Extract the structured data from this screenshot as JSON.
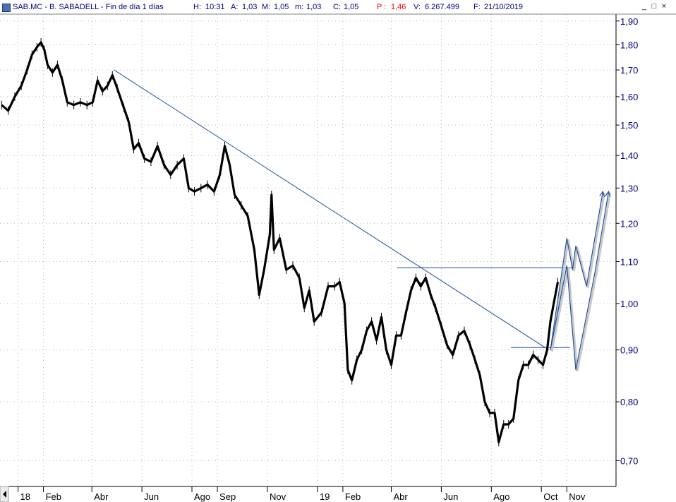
{
  "info_bar": {
    "ticker": "SAB.MC - B. SABADELL - Fin de día 1 días",
    "h_label": "H:",
    "h_value": "10:31",
    "a_label": "A:",
    "a_value": "1,03",
    "m_label": "M:",
    "m_value": "1,05",
    "min_label": "m:",
    "min_value": "1,03",
    "c_label": "C:",
    "c_value": "1,05",
    "p_label": "P :",
    "p_value": "1,46",
    "v_label": "V:",
    "v_value": "6.267.499",
    "f_label": "F:",
    "f_value": "21/10/2019"
  },
  "window_controls": {
    "minimize": "_",
    "maximize": "□",
    "close": "×"
  },
  "colors": {
    "price": "#000000",
    "trendlines": "#1f4e9e",
    "axis_text": "#000080",
    "grid": "#b5b5b5"
  },
  "chart_data": {
    "type": "line",
    "y_scale": "log",
    "ylim": [
      0.66,
      1.93
    ],
    "y_ticks": [
      {
        "value": 1.9,
        "label": "1,90"
      },
      {
        "value": 1.8,
        "label": "1,80"
      },
      {
        "value": 1.7,
        "label": "1,70"
      },
      {
        "value": 1.6,
        "label": "1,60"
      },
      {
        "value": 1.5,
        "label": "1,50"
      },
      {
        "value": 1.4,
        "label": "1,40"
      },
      {
        "value": 1.3,
        "label": "1,30"
      },
      {
        "value": 1.2,
        "label": "1,20"
      },
      {
        "value": 1.1,
        "label": "1,10"
      },
      {
        "value": 1.0,
        "label": "1,00"
      },
      {
        "value": 0.9,
        "label": "0,90"
      },
      {
        "value": 0.8,
        "label": "0,80"
      },
      {
        "value": 0.7,
        "label": "0,70"
      }
    ],
    "xlim": [
      "2017-12-10",
      "2019-12-31"
    ],
    "x_ticks": [
      {
        "date": "2018-01-01",
        "label": "18"
      },
      {
        "date": "2018-02-01",
        "label": "Feb"
      },
      {
        "date": "2018-04-01",
        "label": "Abr"
      },
      {
        "date": "2018-06-01",
        "label": "Jun"
      },
      {
        "date": "2018-08-01",
        "label": "Ago"
      },
      {
        "date": "2018-09-01",
        "label": "Sep"
      },
      {
        "date": "2018-11-01",
        "label": "Nov"
      },
      {
        "date": "2019-01-01",
        "label": "19"
      },
      {
        "date": "2019-02-01",
        "label": "Feb"
      },
      {
        "date": "2019-04-01",
        "label": "Abr"
      },
      {
        "date": "2019-06-01",
        "label": "Jun"
      },
      {
        "date": "2019-08-01",
        "label": "Ago"
      },
      {
        "date": "2019-10-01",
        "label": "Oct"
      },
      {
        "date": "2019-11-01",
        "label": "Nov"
      }
    ],
    "series": [
      {
        "values": [
          [
            "2017-12-12",
            1.57
          ],
          [
            "2017-12-20",
            1.55
          ],
          [
            "2017-12-28",
            1.6
          ],
          [
            "2018-01-05",
            1.64
          ],
          [
            "2018-01-12",
            1.7
          ],
          [
            "2018-01-18",
            1.76
          ],
          [
            "2018-01-24",
            1.79
          ],
          [
            "2018-01-29",
            1.81
          ],
          [
            "2018-02-02",
            1.78
          ],
          [
            "2018-02-06",
            1.72
          ],
          [
            "2018-02-12",
            1.69
          ],
          [
            "2018-02-18",
            1.72
          ],
          [
            "2018-02-24",
            1.66
          ],
          [
            "2018-03-02",
            1.58
          ],
          [
            "2018-03-10",
            1.57
          ],
          [
            "2018-03-18",
            1.58
          ],
          [
            "2018-03-26",
            1.57
          ],
          [
            "2018-04-02",
            1.58
          ],
          [
            "2018-04-08",
            1.66
          ],
          [
            "2018-04-14",
            1.62
          ],
          [
            "2018-04-20",
            1.64
          ],
          [
            "2018-04-26",
            1.68
          ],
          [
            "2018-05-02",
            1.63
          ],
          [
            "2018-05-10",
            1.56
          ],
          [
            "2018-05-16",
            1.51
          ],
          [
            "2018-05-22",
            1.42
          ],
          [
            "2018-05-28",
            1.44
          ],
          [
            "2018-06-04",
            1.39
          ],
          [
            "2018-06-12",
            1.38
          ],
          [
            "2018-06-20",
            1.43
          ],
          [
            "2018-06-28",
            1.37
          ],
          [
            "2018-07-06",
            1.34
          ],
          [
            "2018-07-14",
            1.37
          ],
          [
            "2018-07-22",
            1.39
          ],
          [
            "2018-07-28",
            1.3
          ],
          [
            "2018-08-04",
            1.29
          ],
          [
            "2018-08-12",
            1.3
          ],
          [
            "2018-08-20",
            1.31
          ],
          [
            "2018-08-28",
            1.29
          ],
          [
            "2018-09-04",
            1.34
          ],
          [
            "2018-09-10",
            1.43
          ],
          [
            "2018-09-16",
            1.37
          ],
          [
            "2018-09-22",
            1.28
          ],
          [
            "2018-09-30",
            1.25
          ],
          [
            "2018-10-08",
            1.22
          ],
          [
            "2018-10-16",
            1.13
          ],
          [
            "2018-10-22",
            1.02
          ],
          [
            "2018-10-28",
            1.08
          ],
          [
            "2018-11-04",
            1.17
          ],
          [
            "2018-11-06",
            1.28
          ],
          [
            "2018-11-09",
            1.13
          ],
          [
            "2018-11-16",
            1.16
          ],
          [
            "2018-11-24",
            1.08
          ],
          [
            "2018-12-02",
            1.09
          ],
          [
            "2018-12-10",
            1.06
          ],
          [
            "2018-12-16",
            0.99
          ],
          [
            "2018-12-22",
            1.03
          ],
          [
            "2018-12-28",
            0.96
          ],
          [
            "2019-01-06",
            0.98
          ],
          [
            "2019-01-14",
            1.04
          ],
          [
            "2019-01-22",
            1.04
          ],
          [
            "2019-01-28",
            1.05
          ],
          [
            "2019-02-03",
            1.0
          ],
          [
            "2019-02-07",
            0.86
          ],
          [
            "2019-02-12",
            0.84
          ],
          [
            "2019-02-18",
            0.88
          ],
          [
            "2019-02-24",
            0.9
          ],
          [
            "2019-03-02",
            0.94
          ],
          [
            "2019-03-08",
            0.96
          ],
          [
            "2019-03-14",
            0.92
          ],
          [
            "2019-03-20",
            0.97
          ],
          [
            "2019-03-26",
            0.9
          ],
          [
            "2019-04-01",
            0.87
          ],
          [
            "2019-04-07",
            0.93
          ],
          [
            "2019-04-13",
            0.93
          ],
          [
            "2019-04-19",
            0.98
          ],
          [
            "2019-04-25",
            1.03
          ],
          [
            "2019-05-01",
            1.06
          ],
          [
            "2019-05-07",
            1.04
          ],
          [
            "2019-05-13",
            1.06
          ],
          [
            "2019-05-19",
            1.02
          ],
          [
            "2019-05-25",
            0.99
          ],
          [
            "2019-06-01",
            0.95
          ],
          [
            "2019-06-08",
            0.91
          ],
          [
            "2019-06-15",
            0.89
          ],
          [
            "2019-06-22",
            0.93
          ],
          [
            "2019-06-29",
            0.94
          ],
          [
            "2019-07-06",
            0.91
          ],
          [
            "2019-07-12",
            0.88
          ],
          [
            "2019-07-18",
            0.85
          ],
          [
            "2019-07-24",
            0.8
          ],
          [
            "2019-07-30",
            0.78
          ],
          [
            "2019-08-05",
            0.78
          ],
          [
            "2019-08-10",
            0.73
          ],
          [
            "2019-08-16",
            0.76
          ],
          [
            "2019-08-22",
            0.76
          ],
          [
            "2019-08-28",
            0.77
          ],
          [
            "2019-09-03",
            0.84
          ],
          [
            "2019-09-09",
            0.87
          ],
          [
            "2019-09-15",
            0.87
          ],
          [
            "2019-09-21",
            0.89
          ],
          [
            "2019-09-27",
            0.88
          ],
          [
            "2019-10-03",
            0.87
          ],
          [
            "2019-10-08",
            0.9
          ],
          [
            "2019-10-12",
            0.96
          ],
          [
            "2019-10-16",
            1.0
          ],
          [
            "2019-10-21",
            1.05
          ]
        ]
      }
    ],
    "drawn_lines": [
      {
        "points": [
          [
            "2018-04-28",
            1.7
          ],
          [
            "2019-10-10",
            0.9
          ]
        ]
      },
      {
        "points": [
          [
            "2019-04-08",
            1.085
          ],
          [
            "2019-11-12",
            1.085
          ]
        ]
      },
      {
        "points": [
          [
            "2019-08-25",
            0.905
          ],
          [
            "2019-11-05",
            0.905
          ]
        ]
      }
    ],
    "projection_paths": [
      {
        "points": [
          [
            "2019-10-12",
            0.9
          ],
          [
            "2019-11-01",
            1.16
          ],
          [
            "2019-11-08",
            1.08
          ],
          [
            "2019-11-12",
            1.14
          ],
          [
            "2019-11-25",
            1.04
          ],
          [
            "2019-12-15",
            1.29
          ]
        ]
      },
      {
        "points": [
          [
            "2019-10-12",
            0.9
          ],
          [
            "2019-11-01",
            1.09
          ],
          [
            "2019-11-12",
            0.86
          ],
          [
            "2019-12-05",
            1.07
          ],
          [
            "2019-12-22",
            1.29
          ]
        ]
      }
    ]
  }
}
